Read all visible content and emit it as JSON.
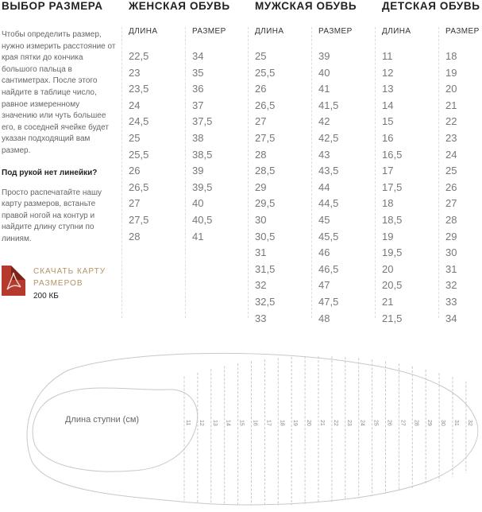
{
  "sidebar": {
    "title": "ВЫБОР РАЗМЕРА",
    "intro": "Чтобы определить размер, нужно измерить расстояние от края пятки до кончика большого пальца в сантиметрах. После этого найдите в таблице число, равное измеренному значению или чуть большее его, в соседней ячейке будет указан подходящий вам размер.",
    "question": "Под рукой нет линейки?",
    "hint": "Просто распечатайте нашу карту размеров, встаньте правой ногой на контур и найдите длину ступни по линиям.",
    "download_label": "СКАЧАТЬ КАРТУ РАЗМЕРОВ",
    "download_size": "200 КБ",
    "download_icon": "pdf-icon"
  },
  "table": {
    "col_length": "ДЛИНА",
    "col_size": "РАЗМЕР",
    "groups": [
      {
        "title": "ЖЕНСКАЯ ОБУВЬ",
        "lengths": [
          "22,5",
          "23",
          "23,5",
          "24",
          "24,5",
          "25",
          "25,5",
          "26",
          "26,5",
          "27",
          "27,5",
          "28"
        ],
        "sizes": [
          "34",
          "35",
          "36",
          "37",
          "37,5",
          "38",
          "38,5",
          "39",
          "39,5",
          "40",
          "40,5",
          "41"
        ]
      },
      {
        "title": "МУЖСКАЯ ОБУВЬ",
        "lengths": [
          "25",
          "25,5",
          "26",
          "26,5",
          "27",
          "27,5",
          "28",
          "28,5",
          "29",
          "29,5",
          "30",
          "30,5",
          "31",
          "31,5",
          "32",
          "32,5",
          "33"
        ],
        "sizes": [
          "39",
          "40",
          "41",
          "41,5",
          "42",
          "42,5",
          "43",
          "43,5",
          "44",
          "44,5",
          "45",
          "45,5",
          "46",
          "46,5",
          "47",
          "47,5",
          "48"
        ]
      },
      {
        "title": "ДЕТСКАЯ ОБУВЬ",
        "lengths": [
          "11",
          "12",
          "13",
          "14",
          "15",
          "16",
          "16,5",
          "17",
          "17,5",
          "18",
          "18,5",
          "19",
          "19,5",
          "20",
          "20,5",
          "21",
          "21,5"
        ],
        "sizes": [
          "18",
          "19",
          "20",
          "21",
          "22",
          "23",
          "24",
          "25",
          "26",
          "27",
          "28",
          "29",
          "30",
          "31",
          "32",
          "33",
          "34"
        ]
      }
    ]
  },
  "foot_map": {
    "label": "Длина ступни (см)",
    "ticks": [
      "11",
      "12",
      "13",
      "14",
      "15",
      "16",
      "17",
      "18",
      "19",
      "20",
      "21",
      "22",
      "23",
      "24",
      "25",
      "26",
      "27",
      "28",
      "29",
      "30",
      "31",
      "32"
    ]
  }
}
